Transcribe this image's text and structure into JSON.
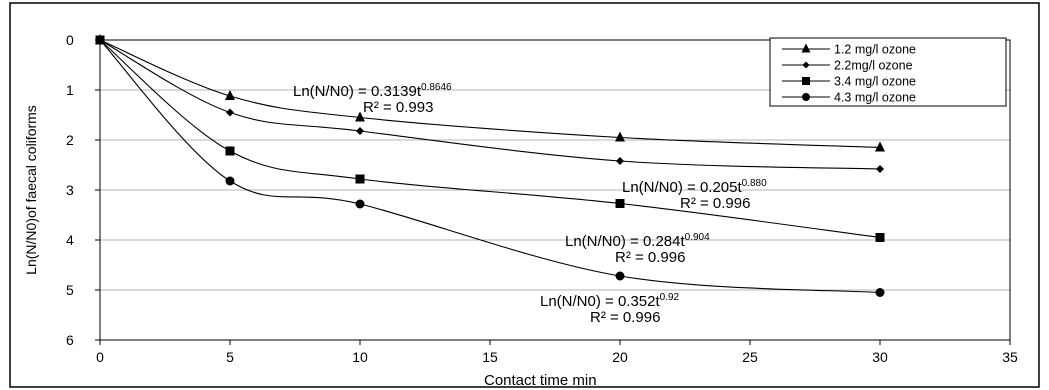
{
  "chart_data": {
    "type": "line",
    "title": "",
    "xlabel": "Contact time    min",
    "ylabel": "Ln(N/N0)of faecal coliforms",
    "xlim": [
      0,
      35
    ],
    "ylim": [
      0,
      6
    ],
    "y_inverted": true,
    "x_ticks": [
      "0",
      "5",
      "10",
      "15",
      "20",
      "25",
      "30",
      "35"
    ],
    "y_ticks": [
      "0",
      "1",
      "2",
      "3",
      "4",
      "5",
      "6"
    ],
    "grid": "horizontal",
    "legend_position": "top-right",
    "series": [
      {
        "name": "1.2 mg/l ozone",
        "marker": "triangle",
        "x": [
          0,
          5,
          10,
          20,
          30
        ],
        "y": [
          0,
          1.12,
          1.55,
          1.95,
          2.15
        ]
      },
      {
        "name": "2.2mg/l ozone",
        "marker": "diamond",
        "x": [
          0,
          5,
          10,
          20,
          30
        ],
        "y": [
          0,
          1.45,
          1.82,
          2.42,
          2.58
        ]
      },
      {
        "name": "3.4 mg/l ozone",
        "marker": "square",
        "x": [
          0,
          5,
          10,
          20,
          30
        ],
        "y": [
          0,
          2.22,
          2.78,
          3.27,
          3.95
        ]
      },
      {
        "name": "4.3 mg/l ozone",
        "marker": "circle",
        "x": [
          0,
          5,
          10,
          20,
          30
        ],
        "y": [
          0,
          2.82,
          3.28,
          4.72,
          5.05
        ]
      }
    ],
    "annotations": [
      {
        "eq_main": "Ln(N/N0)  = 0.3139t",
        "eq_exp": "0.8646",
        "r2": "R² = 0.993"
      },
      {
        "eq_main": "Ln(N/N0) = 0.205t",
        "eq_exp": "0.880",
        "r2": "R² = 0.996"
      },
      {
        "eq_main": "Ln(N/N0) = 0.284t",
        "eq_exp": "0.904",
        "r2": "R² = 0.996"
      },
      {
        "eq_main": "Ln(N/N0) = 0.352t",
        "eq_exp": "0.92",
        "r2": "R² = 0.996"
      }
    ]
  }
}
